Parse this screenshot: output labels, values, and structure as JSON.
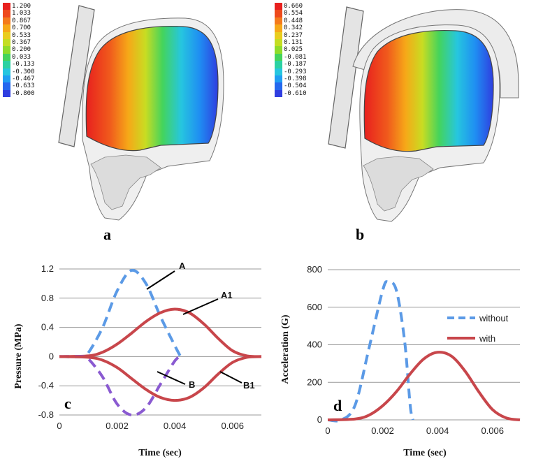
{
  "panel_a": {
    "label": "a",
    "legend": [
      "1.200",
      "1.033",
      "0.867",
      "0.700",
      "0.533",
      "0.367",
      "0.200",
      "0.033",
      "-0.133",
      "-0.300",
      "-0.467",
      "-0.633",
      "-0.800"
    ]
  },
  "panel_b": {
    "label": "b",
    "legend": [
      "0.660",
      "0.554",
      "0.448",
      "0.342",
      "0.237",
      "0.131",
      "0.025",
      "-0.081",
      "-0.187",
      "-0.293",
      "-0.398",
      "-0.504",
      "-0.610"
    ]
  },
  "colors": {
    "legend": [
      "#e8201e",
      "#ee4a1c",
      "#f47a1c",
      "#f6a818",
      "#e9cd1e",
      "#c4dd22",
      "#8fdc2a",
      "#44d45c",
      "#2bd1a2",
      "#26c6df",
      "#1f9ef2",
      "#2468ee",
      "#2f3ee0"
    ],
    "blue_dash": "#5b9ae6",
    "red": "#c8464b",
    "purple_dash": "#8a5ad1",
    "grid": "#999999"
  },
  "chart_data": [
    {
      "type": "line",
      "panel": "c",
      "xlabel": "Time (sec)",
      "ylabel": "Pressure (MPa)",
      "xlim": [
        0,
        0.007
      ],
      "ylim": [
        -0.8,
        1.2
      ],
      "xticks": [
        "0",
        "0.002",
        "0.004",
        "0.006"
      ],
      "yticks": [
        "1.2",
        "0.8",
        "0.4",
        "0",
        "-0.4",
        "-0.8"
      ],
      "annotations": [
        "A",
        "A1",
        "B",
        "B1"
      ],
      "series": [
        {
          "name": "A",
          "style": "dashed",
          "x": [
            0,
            0.0008,
            0.001,
            0.0015,
            0.002,
            0.0025,
            0.003,
            0.0035,
            0.004,
            0.0042
          ],
          "y": [
            0,
            0,
            0.05,
            0.4,
            0.9,
            1.18,
            1.0,
            0.55,
            0.15,
            0
          ]
        },
        {
          "name": "A1",
          "style": "solid",
          "x": [
            0,
            0.001,
            0.0015,
            0.002,
            0.0025,
            0.003,
            0.0035,
            0.004,
            0.0045,
            0.005,
            0.0055,
            0.006,
            0.0065,
            0.007
          ],
          "y": [
            0,
            0.01,
            0.06,
            0.17,
            0.32,
            0.48,
            0.6,
            0.65,
            0.6,
            0.45,
            0.25,
            0.08,
            0.01,
            0
          ]
        },
        {
          "name": "B",
          "style": "dashed",
          "x": [
            0,
            0.0008,
            0.001,
            0.0015,
            0.002,
            0.0025,
            0.003,
            0.0035,
            0.004,
            0.0042
          ],
          "y": [
            0,
            0,
            -0.03,
            -0.28,
            -0.65,
            -0.8,
            -0.7,
            -0.38,
            -0.06,
            0
          ]
        },
        {
          "name": "B1",
          "style": "solid",
          "x": [
            0,
            0.001,
            0.0015,
            0.002,
            0.0025,
            0.003,
            0.0035,
            0.004,
            0.0045,
            0.005,
            0.0055,
            0.006,
            0.0065,
            0.007
          ],
          "y": [
            0,
            -0.01,
            -0.05,
            -0.15,
            -0.3,
            -0.45,
            -0.56,
            -0.6,
            -0.56,
            -0.43,
            -0.24,
            -0.08,
            -0.01,
            0
          ]
        }
      ]
    },
    {
      "type": "line",
      "panel": "d",
      "xlabel": "Time (sec)",
      "ylabel": "Acceleration (G)",
      "xlim": [
        0,
        0.007
      ],
      "ylim": [
        0,
        800
      ],
      "xticks": [
        "0",
        "0.002",
        "0.004",
        "0.006"
      ],
      "yticks": [
        "800",
        "600",
        "400",
        "200",
        "0"
      ],
      "legend": [
        "without",
        "with"
      ],
      "series": [
        {
          "name": "without",
          "style": "dashed",
          "x": [
            0,
            0.0005,
            0.001,
            0.0015,
            0.002,
            0.0022,
            0.0025,
            0.0028,
            0.003,
            0.0031
          ],
          "y": [
            0,
            0,
            80,
            380,
            690,
            735,
            690,
            420,
            80,
            0
          ]
        },
        {
          "name": "with",
          "style": "solid",
          "x": [
            0,
            0.001,
            0.0015,
            0.002,
            0.0025,
            0.003,
            0.0035,
            0.004,
            0.0045,
            0.005,
            0.0055,
            0.006,
            0.0065,
            0.007
          ],
          "y": [
            0,
            5,
            25,
            75,
            150,
            245,
            325,
            360,
            340,
            260,
            150,
            55,
            10,
            0
          ]
        }
      ]
    }
  ]
}
